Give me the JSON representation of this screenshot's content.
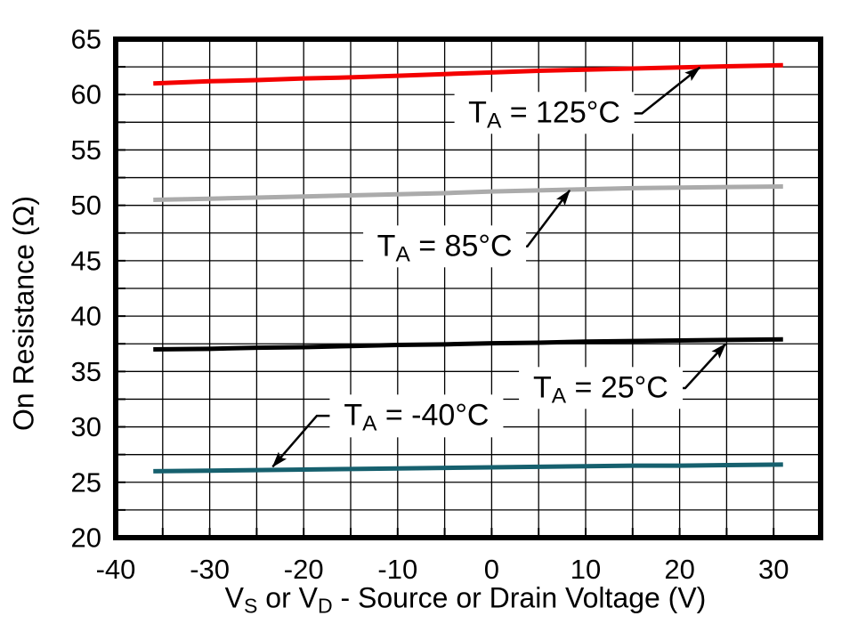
{
  "window": {
    "background": "#FFFFFF",
    "frame_color": "#000000",
    "grid_color": "#000000"
  },
  "chart_data": {
    "type": "line",
    "title": "",
    "xlabel_plain": "VS or VD - Source or Drain Voltage (V)",
    "xlabel_parts": [
      {
        "text": "V"
      },
      {
        "text": "S",
        "sub": true
      },
      {
        "text": " or V"
      },
      {
        "text": "D",
        "sub": true
      },
      {
        "text": " - Source or Drain Voltage (V)"
      }
    ],
    "ylabel": "On Resistance (Ω)",
    "xlim": [
      -40,
      35
    ],
    "ylim": [
      20,
      65
    ],
    "x_ticks": [
      -40,
      -30,
      -20,
      -10,
      0,
      10,
      20,
      30
    ],
    "y_ticks": [
      20,
      25,
      30,
      35,
      40,
      45,
      50,
      55,
      60,
      65
    ],
    "x_grid_step": 5,
    "y_grid_step": 2.5,
    "grid": true,
    "legend": "inline-annotations",
    "x": [
      -36,
      -30,
      -25,
      -20,
      -15,
      -10,
      -5,
      0,
      5,
      10,
      15,
      20,
      25,
      31
    ],
    "series": [
      {
        "name": "TA = 125°C",
        "slug": "ta-125c",
        "color": "#F40000",
        "values": [
          61.0,
          61.2,
          61.3,
          61.45,
          61.55,
          61.7,
          61.85,
          62.0,
          62.15,
          62.25,
          62.35,
          62.45,
          62.55,
          62.65
        ]
      },
      {
        "name": "TA = 85°C",
        "slug": "ta-85c",
        "color": "#ABABAB",
        "values": [
          50.5,
          50.6,
          50.7,
          50.8,
          50.9,
          51.0,
          51.1,
          51.25,
          51.35,
          51.45,
          51.55,
          51.6,
          51.65,
          51.7
        ]
      },
      {
        "name": "TA = 25°C",
        "slug": "ta-25c",
        "color": "#000000",
        "values": [
          37.0,
          37.05,
          37.15,
          37.2,
          37.3,
          37.4,
          37.45,
          37.55,
          37.6,
          37.7,
          37.75,
          37.8,
          37.85,
          37.9
        ]
      },
      {
        "name": "TA = -40°C",
        "slug": "ta-neg40c",
        "color": "#16606E",
        "values": [
          26.0,
          26.05,
          26.1,
          26.15,
          26.2,
          26.25,
          26.3,
          26.35,
          26.4,
          26.45,
          26.5,
          26.5,
          26.55,
          26.6
        ]
      }
    ],
    "annotations": [
      {
        "slug": "ta-125c",
        "main": "T",
        "sub": "A",
        "rest": " = 125°C",
        "text_x": 5.6,
        "text_y": 58.35,
        "leader": [
          [
            13.8,
            58.3
          ],
          [
            16.0,
            58.3
          ],
          [
            22.15,
            62.45
          ]
        ]
      },
      {
        "slug": "ta-85c",
        "main": "T",
        "sub": "A",
        "rest": " = 85°C",
        "text_x": -5.0,
        "text_y": 46.3,
        "leader": [
          [
            1.8,
            46.3
          ],
          [
            3.8,
            46.3
          ],
          [
            8.3,
            51.35
          ]
        ]
      },
      {
        "slug": "ta-25c",
        "main": "T",
        "sub": "A",
        "rest": " = 25°C",
        "text_x": 11.6,
        "text_y": 33.5,
        "leader": [
          [
            18.5,
            33.5
          ],
          [
            20.6,
            33.5
          ],
          [
            24.9,
            37.5
          ]
        ]
      },
      {
        "slug": "ta-neg40c",
        "main": "T",
        "sub": "A",
        "rest": " = -40°C",
        "text_x": -8.0,
        "text_y": 31.0,
        "leader": [
          [
            -16.2,
            31.0
          ],
          [
            -18.6,
            31.0
          ],
          [
            -23.3,
            26.4
          ]
        ]
      }
    ]
  }
}
